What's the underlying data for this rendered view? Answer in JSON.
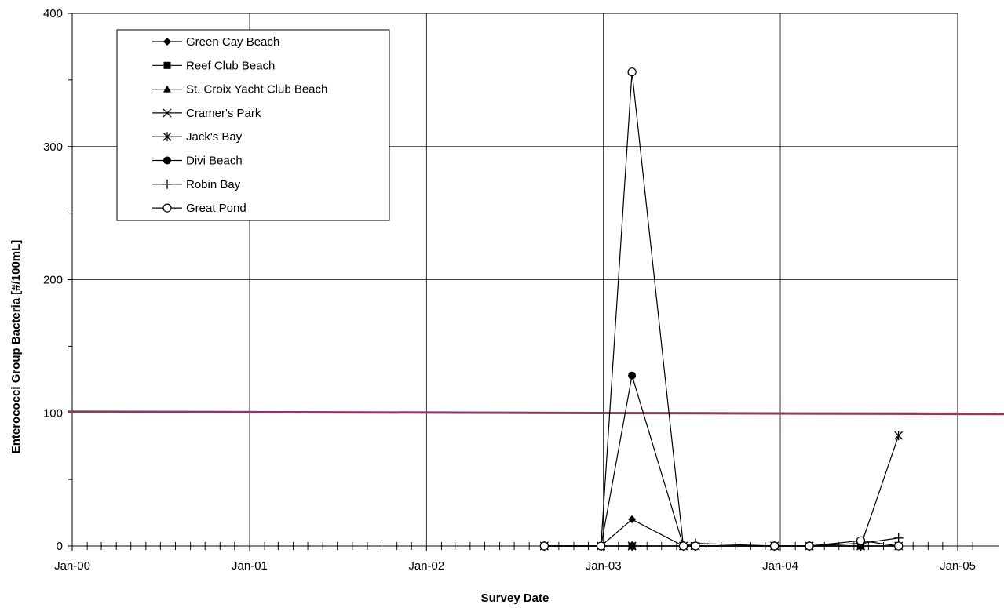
{
  "chart_data": {
    "type": "line",
    "title": "",
    "xlabel": "Survey Date",
    "ylabel": "Enterococci Group Bacteria [#/100mL]",
    "x_range": [
      "2000-01-01",
      "2005-01-01"
    ],
    "ylim": [
      0,
      400
    ],
    "x_ticks": [
      {
        "date": "2000-01-01",
        "label": "Jan-00"
      },
      {
        "date": "2001-01-01",
        "label": "Jan-01"
      },
      {
        "date": "2002-01-01",
        "label": "Jan-02"
      },
      {
        "date": "2003-01-01",
        "label": "Jan-03"
      },
      {
        "date": "2004-01-01",
        "label": "Jan-04"
      },
      {
        "date": "2005-01-01",
        "label": "Jan-05"
      }
    ],
    "y_ticks": [
      {
        "value": 0,
        "label": "0"
      },
      {
        "value": 100,
        "label": "100"
      },
      {
        "value": 200,
        "label": "200"
      },
      {
        "value": 300,
        "label": "300"
      },
      {
        "value": 400,
        "label": "400"
      }
    ],
    "grid": true,
    "legend_position": "top-left",
    "reference_line": {
      "value": 100,
      "color": "#8b3a62"
    },
    "series": [
      {
        "name": "Green Cay Beach",
        "marker": "diamond",
        "points": [
          [
            "2002-09-01",
            0
          ],
          [
            "2002-12-27",
            0
          ],
          [
            "2003-03-01",
            20
          ],
          [
            "2003-06-15",
            0
          ],
          [
            "2003-07-10",
            0
          ],
          [
            "2003-12-20",
            0
          ],
          [
            "2004-03-01",
            0
          ],
          [
            "2004-06-15",
            0
          ],
          [
            "2004-09-01",
            0
          ]
        ]
      },
      {
        "name": "Reef Club Beach",
        "marker": "square",
        "points": [
          [
            "2002-09-01",
            0
          ],
          [
            "2002-12-27",
            0
          ],
          [
            "2003-03-01",
            0
          ],
          [
            "2003-06-15",
            0
          ],
          [
            "2003-07-10",
            0
          ],
          [
            "2003-12-20",
            0
          ],
          [
            "2004-03-01",
            0
          ],
          [
            "2004-06-15",
            0
          ],
          [
            "2004-09-01",
            0
          ]
        ]
      },
      {
        "name": "St. Croix Yacht Club Beach",
        "marker": "triangle",
        "points": [
          [
            "2002-09-01",
            0
          ],
          [
            "2002-12-27",
            0
          ],
          [
            "2003-03-01",
            0
          ],
          [
            "2003-06-15",
            0
          ],
          [
            "2003-07-10",
            0
          ],
          [
            "2003-12-20",
            0
          ],
          [
            "2004-03-01",
            0
          ],
          [
            "2004-06-15",
            0
          ],
          [
            "2004-09-01",
            0
          ]
        ]
      },
      {
        "name": "Cramer's Park",
        "marker": "x",
        "points": [
          [
            "2002-09-01",
            0
          ],
          [
            "2002-12-27",
            0
          ],
          [
            "2003-03-01",
            0
          ],
          [
            "2003-06-15",
            0
          ],
          [
            "2003-07-10",
            0
          ],
          [
            "2003-12-20",
            0
          ],
          [
            "2004-03-01",
            0
          ],
          [
            "2004-06-15",
            0
          ],
          [
            "2004-09-01",
            0
          ]
        ]
      },
      {
        "name": "Jack's Bay",
        "marker": "star",
        "points": [
          [
            "2002-09-01",
            0
          ],
          [
            "2002-12-27",
            0
          ],
          [
            "2003-03-01",
            0
          ],
          [
            "2003-06-15",
            0
          ],
          [
            "2003-07-10",
            0
          ],
          [
            "2003-12-20",
            0
          ],
          [
            "2004-03-01",
            0
          ],
          [
            "2004-06-15",
            0
          ],
          [
            "2004-09-01",
            83
          ]
        ]
      },
      {
        "name": "Divi Beach",
        "marker": "circle",
        "points": [
          [
            "2002-09-01",
            0
          ],
          [
            "2002-12-27",
            0
          ],
          [
            "2003-03-01",
            128
          ],
          [
            "2003-06-15",
            0
          ],
          [
            "2003-07-10",
            0
          ],
          [
            "2003-12-20",
            0
          ],
          [
            "2004-03-01",
            0
          ],
          [
            "2004-06-15",
            0
          ],
          [
            "2004-09-01",
            0
          ]
        ]
      },
      {
        "name": "Robin Bay",
        "marker": "plus",
        "points": [
          [
            "2002-09-01",
            0
          ],
          [
            "2002-12-27",
            0
          ],
          [
            "2003-03-01",
            0
          ],
          [
            "2003-06-15",
            0
          ],
          [
            "2003-07-10",
            2
          ],
          [
            "2003-12-20",
            0
          ],
          [
            "2004-03-01",
            0
          ],
          [
            "2004-06-15",
            2
          ],
          [
            "2004-09-01",
            6
          ]
        ]
      },
      {
        "name": "Great Pond",
        "marker": "open-circle",
        "points": [
          [
            "2002-09-01",
            0
          ],
          [
            "2002-12-27",
            0
          ],
          [
            "2003-03-01",
            356
          ],
          [
            "2003-06-15",
            0
          ],
          [
            "2003-07-10",
            0
          ],
          [
            "2003-12-20",
            0
          ],
          [
            "2004-03-01",
            0
          ],
          [
            "2004-06-15",
            4
          ],
          [
            "2004-09-01",
            0
          ]
        ]
      }
    ]
  }
}
